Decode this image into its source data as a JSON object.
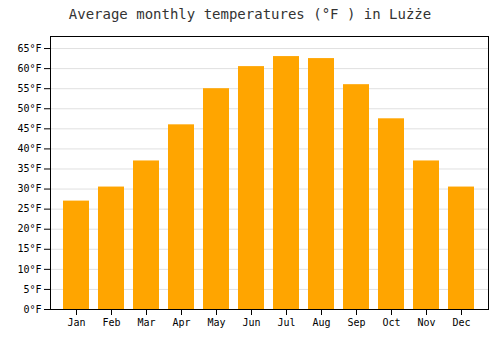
{
  "chart_data": {
    "type": "bar",
    "title": "Average monthly temperatures (°F ) in Lużże",
    "categories": [
      "Jan",
      "Feb",
      "Mar",
      "Apr",
      "May",
      "Jun",
      "Jul",
      "Aug",
      "Sep",
      "Oct",
      "Nov",
      "Dec"
    ],
    "values": [
      27,
      30.5,
      37,
      46,
      55,
      60.5,
      63,
      62.5,
      56,
      47.5,
      37,
      30.5
    ],
    "color": "#FFA500",
    "ylim": [
      0,
      68
    ],
    "yticks": [
      {
        "value": 0,
        "label": "0°F"
      },
      {
        "value": 5,
        "label": "5°F"
      },
      {
        "value": 10,
        "label": "10°F"
      },
      {
        "value": 15,
        "label": "15°F"
      },
      {
        "value": 20,
        "label": "20°F"
      },
      {
        "value": 25,
        "label": "25°F"
      },
      {
        "value": 30,
        "label": "30°F"
      },
      {
        "value": 35,
        "label": "35°F"
      },
      {
        "value": 40,
        "label": "40°F"
      },
      {
        "value": 45,
        "label": "45°F"
      },
      {
        "value": 50,
        "label": "50°F"
      },
      {
        "value": 55,
        "label": "55°F"
      },
      {
        "value": 60,
        "label": "60°F"
      },
      {
        "value": 65,
        "label": "65°F"
      }
    ],
    "grid": true
  }
}
